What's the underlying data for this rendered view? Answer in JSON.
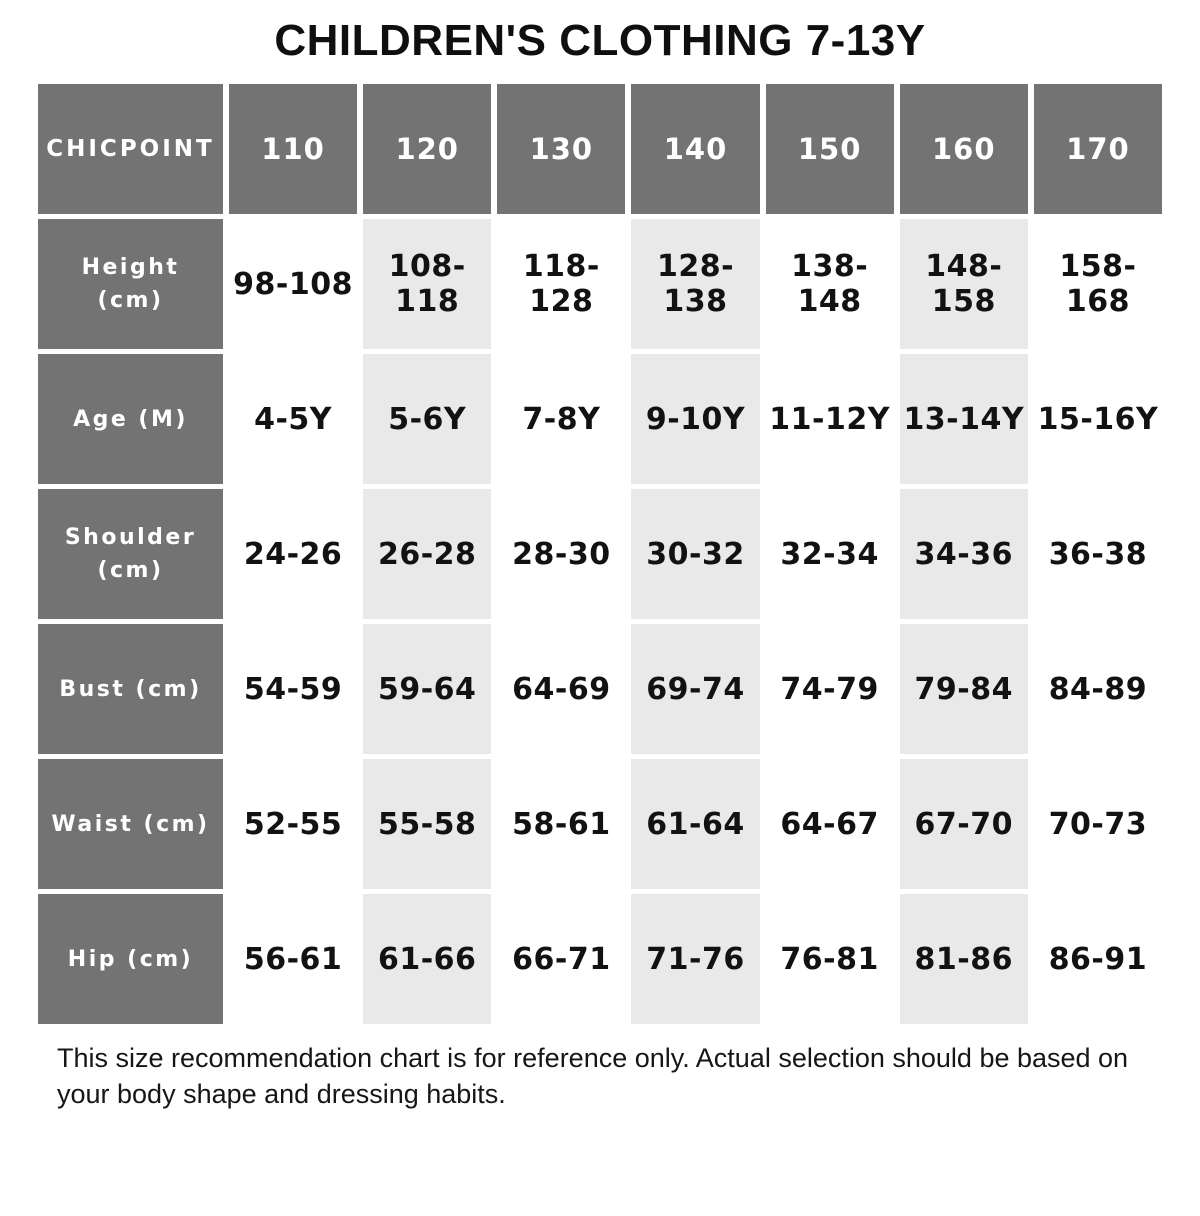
{
  "title": "CHILDREN'S CLOTHING 7-13Y",
  "footer_note": "This size recommendation chart is for reference only. Actual selection should be based on your body shape and dressing habits.",
  "colors": {
    "header_bg": "#737373",
    "header_text": "#ffffff",
    "shaded_column_bg": "#e9e9e9",
    "plain_column_bg": "#ffffff",
    "value_text": "#121212"
  },
  "chart_data": {
    "type": "table",
    "title": "CHILDREN'S CLOTHING 7-13Y",
    "brand": "CHICPOINT",
    "columns": [
      "CHICPOINT",
      "110",
      "120",
      "130",
      "140",
      "150",
      "160",
      "170"
    ],
    "rows": [
      {
        "label": "Height (cm)",
        "values": [
          "98-108",
          "108-118",
          "118-128",
          "128-138",
          "138-148",
          "148-158",
          "158-168"
        ]
      },
      {
        "label": "Age (M)",
        "values": [
          "4-5Y",
          "5-6Y",
          "7-8Y",
          "9-10Y",
          "11-12Y",
          "13-14Y",
          "15-16Y"
        ]
      },
      {
        "label": "Shoulder (cm)",
        "values": [
          "24-26",
          "26-28",
          "28-30",
          "30-32",
          "32-34",
          "34-36",
          "36-38"
        ]
      },
      {
        "label": "Bust (cm)",
        "values": [
          "54-59",
          "59-64",
          "64-69",
          "69-74",
          "74-79",
          "79-84",
          "84-89"
        ]
      },
      {
        "label": "Waist (cm)",
        "values": [
          "52-55",
          "55-58",
          "58-61",
          "61-64",
          "64-67",
          "67-70",
          "70-73"
        ]
      },
      {
        "label": "Hip (cm)",
        "values": [
          "56-61",
          "61-66",
          "66-71",
          "71-76",
          "76-81",
          "81-86",
          "86-91"
        ]
      }
    ],
    "layout": {
      "shaded_value_columns": [
        1,
        3,
        5
      ],
      "header_row_dark": true,
      "label_column_dark": true
    }
  }
}
